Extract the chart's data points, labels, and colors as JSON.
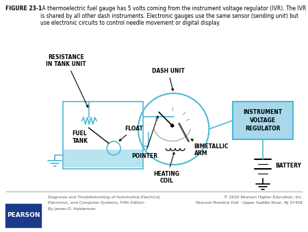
{
  "figure_label": "FIGURE 23-1",
  "figure_caption": " A thermoelectric fuel gauge has 5 volts coming from the instrument voltage regulator (IVR). The IVR is shared by all other dash instruments. Electronic gauges use the same sensor (sending unit) but use electronic circuits to control needle movement or digital display.",
  "bg_color": "#ffffff",
  "diagram_line_color": "#4db8d4",
  "label_color": "#000000",
  "ivr_box_color": "#a8d8ea",
  "ivr_box_edge": "#4db8d4",
  "footer_line_color": "#aaaaaa",
  "pearson_box_color": "#1a3a8a",
  "pearson_text": "PEARSON",
  "footer_left_line1": "Diagnosis and Troubleshooting of Automotive Electrical,",
  "footer_left_line2": "Electronic, and Computer Systems, Fifth Edition",
  "footer_left_line3": "By James D. Halderman",
  "footer_right_line1": "© 2010 Pearson Higher Education, Inc.",
  "footer_right_line2": "Pearson Prentice Hall · Upper Saddle River, NJ 07458",
  "labels": {
    "resistance": "RESISTANCE\nIN TANK UNIT",
    "dash_unit": "DASH UNIT",
    "float_label": "FLOAT",
    "fuel_tank": "FUEL\nTANK",
    "pointer": "POINTER",
    "heating_coil": "HEATING\nCOIL",
    "bimetallic_arm": "BIMETALLIC\nARM",
    "instrument_vr": "INSTRUMENT\nVOLTAGE\nREGULATOR",
    "battery": "BATTERY"
  }
}
